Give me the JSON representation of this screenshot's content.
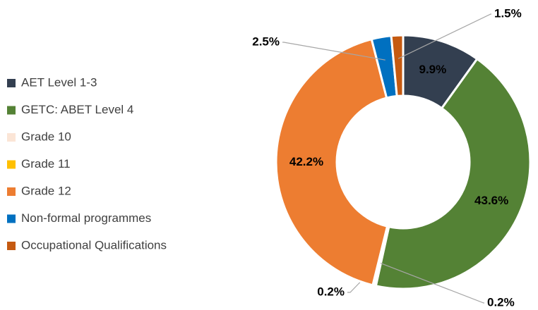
{
  "chart_data": {
    "type": "donut",
    "categories": [
      "AET Level 1-3",
      "GETC: ABET Level 4",
      "Grade 10",
      "Grade 11",
      "Grade 12",
      "Non-formal programmes",
      "Occupational Qualifications"
    ],
    "values": [
      9.9,
      43.6,
      0.2,
      0.2,
      42.2,
      2.5,
      1.5
    ],
    "value_labels": [
      "9.9%",
      "43.6%",
      "0.2%",
      "0.2%",
      "42.2%",
      "2.5%",
      "1.5%"
    ],
    "colors": [
      "#333f50",
      "#548235",
      "#fbe5d6",
      "#ffc000",
      "#ed7d31",
      "#0070c0",
      "#c55a11"
    ],
    "legend": "left"
  }
}
